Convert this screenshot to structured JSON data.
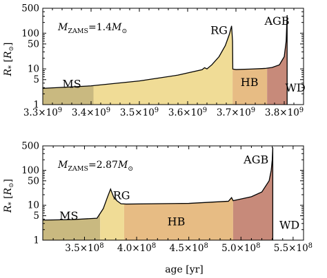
{
  "chart_data": [
    {
      "type": "area",
      "annotation": {
        "main": "M",
        "sub": "ZAMS",
        "rest": "=1.4M",
        "sym": "⊙"
      },
      "ylabel": {
        "main": "R",
        "sub": "*",
        "unit": "[R",
        "unitSub": "⊙",
        "close": "]"
      },
      "xlabel": "",
      "xlim": [
        3300000000.0,
        3840000000.0
      ],
      "ylim": [
        1,
        500
      ],
      "yscale": "log",
      "xticks": [
        {
          "v": 3300000000.0,
          "m": "3.3",
          "e": "9"
        },
        {
          "v": 3400000000.0,
          "m": "3.4",
          "e": "9"
        },
        {
          "v": 3500000000.0,
          "m": "3.5",
          "e": "9"
        },
        {
          "v": 3600000000.0,
          "m": "3.6",
          "e": "9"
        },
        {
          "v": 3700000000.0,
          "m": "3.7",
          "e": "9"
        },
        {
          "v": 3800000000.0,
          "m": "3.8",
          "e": "9"
        }
      ],
      "yticks": [
        {
          "v": 1,
          "label": "1"
        },
        {
          "v": 5,
          "label": "5"
        },
        {
          "v": 10,
          "label": "10"
        },
        {
          "v": 50,
          "label": "50"
        },
        {
          "v": 100,
          "label": "100"
        },
        {
          "v": 500,
          "label": "500"
        }
      ],
      "stages": [
        {
          "label": "MS",
          "start": 3300000000.0,
          "end": 3405000000.0,
          "color": "#c9b980",
          "labelX": 3360000000.0,
          "labelY": 3.8
        },
        {
          "label": "RG",
          "start": 3405000000.0,
          "end": 3693000000.0,
          "color": "#f0dc96",
          "labelX": 3665000000.0,
          "labelY": 120
        },
        {
          "label": "HB",
          "start": 3693000000.0,
          "end": 3764500000.0,
          "color": "#e7bc84",
          "labelX": 3728000000.0,
          "labelY": 4.2
        },
        {
          "label": "AGB",
          "start": 3764500000.0,
          "end": 3806000000.0,
          "color": "#c78a7a",
          "labelX": 3785000000.0,
          "labelY": 220
        },
        {
          "label": "WD",
          "start": null,
          "end": null,
          "color": "",
          "labelX": 3823000000.0,
          "labelY": 3.0
        }
      ],
      "curve": [
        [
          3300000000.0,
          2.85
        ],
        [
          3400000000.0,
          3.35
        ],
        [
          3500000000.0,
          4.6
        ],
        [
          3580000000.0,
          6.7
        ],
        [
          3630000000.0,
          9.5
        ],
        [
          3635000000.0,
          10.8
        ],
        [
          3640000000.0,
          10.0
        ],
        [
          3650000000.0,
          13.0
        ],
        [
          3665000000.0,
          22.0
        ],
        [
          3678000000.0,
          45.0
        ],
        [
          3686000000.0,
          90.0
        ],
        [
          3691000000.0,
          160.0
        ],
        [
          3693000000.0,
          60.0
        ],
        [
          3693500000.0,
          9.9
        ],
        [
          3700000000.0,
          9.6
        ],
        [
          3730000000.0,
          9.9
        ],
        [
          3760000000.0,
          10.3
        ],
        [
          3775000000.0,
          11.0
        ],
        [
          3790000000.0,
          13.0
        ],
        [
          3800000000.0,
          22.0
        ],
        [
          3804000000.0,
          60.0
        ],
        [
          3806000000.0,
          320.0
        ]
      ]
    },
    {
      "type": "area",
      "annotation": {
        "main": "M",
        "sub": "ZAMS",
        "rest": "=2.87M",
        "sym": "⊙"
      },
      "ylabel": {
        "main": "R",
        "sub": "*",
        "unit": "[R",
        "unitSub": "⊙",
        "close": "]"
      },
      "xlabel": "age [yr]",
      "xlim": [
        310000000.0,
        560000000.0
      ],
      "ylim": [
        1,
        500
      ],
      "yscale": "log",
      "xticks": [
        {
          "v": 350000000.0,
          "m": "3.5",
          "e": "8"
        },
        {
          "v": 400000000.0,
          "m": "4.0",
          "e": "8"
        },
        {
          "v": 450000000.0,
          "m": "4.5",
          "e": "8"
        },
        {
          "v": 500000000.0,
          "m": "5.0",
          "e": "8"
        },
        {
          "v": 550000000.0,
          "m": "5.5",
          "e": "8"
        }
      ],
      "yticks": [
        {
          "v": 1,
          "label": "1"
        },
        {
          "v": 5,
          "label": "5"
        },
        {
          "v": 10,
          "label": "10"
        },
        {
          "v": 50,
          "label": "50"
        },
        {
          "v": 100,
          "label": "100"
        },
        {
          "v": 500,
          "label": "500"
        }
      ],
      "stages": [
        {
          "label": "MS",
          "start": 310000000.0,
          "end": 365000000.0,
          "color": "#c9b980",
          "labelX": 335000000.0,
          "labelY": 5.0
        },
        {
          "label": "RG",
          "start": 365000000.0,
          "end": 388000000.0,
          "color": "#f0dc96",
          "labelX": 385500000.0,
          "labelY": 19.0
        },
        {
          "label": "HB",
          "start": 388000000.0,
          "end": 492500000.0,
          "color": "#e7bc84",
          "labelX": 438000000.0,
          "labelY": 3.4
        },
        {
          "label": "AGB",
          "start": 492500000.0,
          "end": 530500000.0,
          "color": "#c78a7a",
          "labelX": 514500000.0,
          "labelY": 200
        },
        {
          "label": "WD",
          "start": null,
          "end": null,
          "color": "",
          "labelX": 546500000.0,
          "labelY": 2.7
        }
      ],
      "curve": [
        [
          310000000.0,
          3.75
        ],
        [
          340000000.0,
          3.9
        ],
        [
          362000000.0,
          4.25
        ],
        [
          368000000.0,
          8.0
        ],
        [
          372000000.0,
          17.0
        ],
        [
          375000000.0,
          29.0
        ],
        [
          378000000.0,
          17.0
        ],
        [
          381000000.0,
          13.5
        ],
        [
          385000000.0,
          11.0
        ],
        [
          390000000.0,
          10.8
        ],
        [
          450000000.0,
          11.3
        ],
        [
          488000000.0,
          13.0
        ],
        [
          491000000.0,
          16.5
        ],
        [
          492500000.0,
          13.5
        ],
        [
          510000000.0,
          17.5
        ],
        [
          520000000.0,
          24.0
        ],
        [
          527000000.0,
          50.0
        ],
        [
          529000000.0,
          100.0
        ],
        [
          530000000.0,
          200.0
        ],
        [
          530500000.0,
          450.0
        ]
      ]
    }
  ]
}
